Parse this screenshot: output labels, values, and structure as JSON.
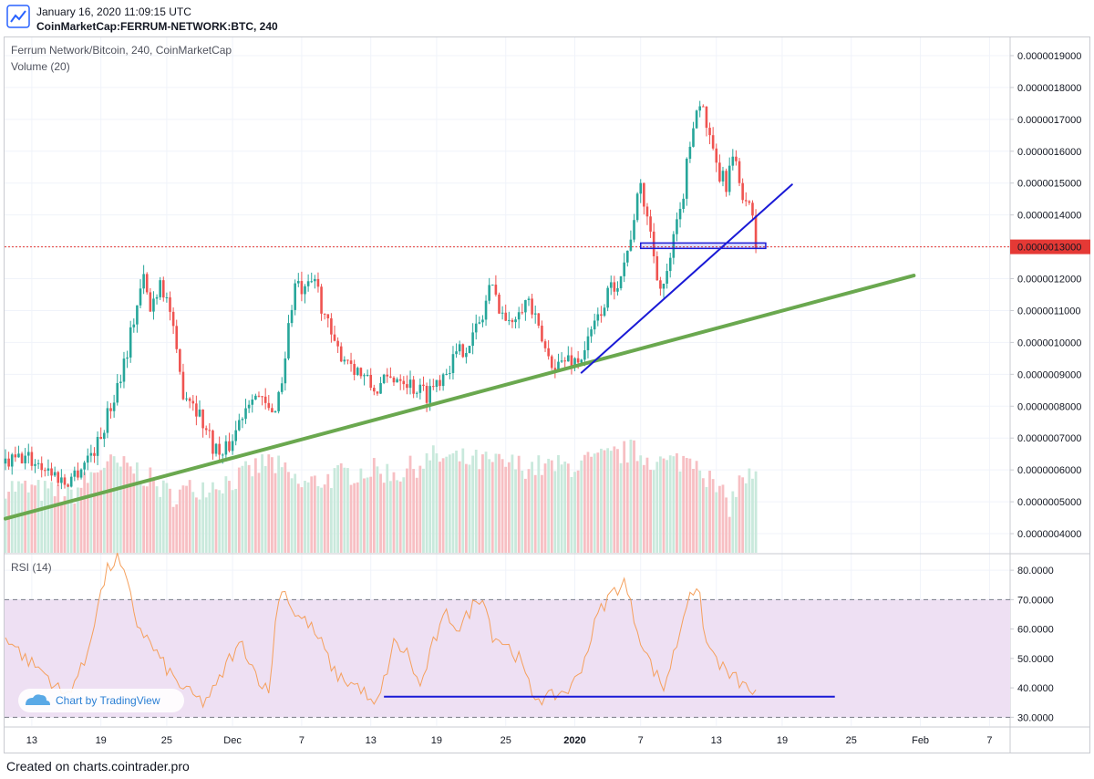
{
  "header": {
    "date": "January 16, 2020 11:09:15 UTC",
    "symbol": "CoinMarketCap:FERRUM-NETWORK:BTC, 240"
  },
  "footer": {
    "text": "Created on charts.cointrader.pro"
  },
  "watermark": {
    "text": "Chart by TradingView",
    "icon": "tradingview-cloud-icon"
  },
  "colors": {
    "up": "#26a69a",
    "down": "#ef5350",
    "volume_up": "#c9e9dc",
    "volume_down": "#f7bfc3",
    "rsi_line": "#f5a05d",
    "rsi_band": "#eee0f3",
    "price_line": "#e53935",
    "trendline_green": "#6aa84f",
    "trendline_blue": "#1a1ad6"
  },
  "chart_data": [
    {
      "type": "candlestick",
      "title": "Ferrum Network/Bitcoin, 240, CoinMarketCap",
      "overlay_label": "Volume (20)",
      "y_ticks": [
        "0.0000004000",
        "0.0000005000",
        "0.0000006000",
        "0.0000007000",
        "0.0000008000",
        "0.0000009000",
        "0.0000010000",
        "0.0000011000",
        "0.0000012000",
        "0.0000013000",
        "0.0000014000",
        "0.0000015000",
        "0.0000016000",
        "0.0000017000",
        "0.0000018000",
        "0.0000019000"
      ],
      "ylim": [
        3.4e-07,
        1.96e-06
      ],
      "x_ticks": [
        "13",
        "19",
        "25",
        "Dec",
        "7",
        "13",
        "19",
        "25",
        "2020",
        "7",
        "13",
        "19",
        "25",
        "Feb",
        "7"
      ],
      "last_price": "0.0000013000",
      "last_price_value": 1.3e-06,
      "price_path": [
        [
          0,
          6.2e-07
        ],
        [
          6,
          6.4e-07
        ],
        [
          12,
          6.1e-07
        ],
        [
          18,
          5.6e-07
        ],
        [
          22,
          6e-07
        ],
        [
          28,
          6.8e-07
        ],
        [
          33,
          8.3e-07
        ],
        [
          37,
          9.8e-07
        ],
        [
          40,
          1.12e-06
        ],
        [
          42,
          1.2e-06
        ],
        [
          44,
          1.1e-06
        ],
        [
          47,
          1.2e-06
        ],
        [
          50,
          1.1e-06
        ],
        [
          52,
          9.5e-07
        ],
        [
          54,
          8.5e-07
        ],
        [
          57,
          8.2e-07
        ],
        [
          60,
          7.5e-07
        ],
        [
          63,
          6.8e-07
        ],
        [
          66,
          6.4e-07
        ],
        [
          69,
          7e-07
        ],
        [
          72,
          7.8e-07
        ],
        [
          75,
          8.5e-07
        ],
        [
          78,
          8.1e-07
        ],
        [
          81,
          7.7e-07
        ],
        [
          84,
          8.8e-07
        ],
        [
          86,
          1.05e-06
        ],
        [
          88,
          1.18e-06
        ],
        [
          91,
          1.15e-06
        ],
        [
          94,
          1.2e-06
        ],
        [
          96,
          1.12e-06
        ],
        [
          98,
          1.05e-06
        ],
        [
          100,
          9.8e-07
        ],
        [
          104,
          9.5e-07
        ],
        [
          108,
          9e-07
        ],
        [
          112,
          8.5e-07
        ],
        [
          116,
          8.8e-07
        ],
        [
          120,
          9e-07
        ],
        [
          124,
          8.6e-07
        ],
        [
          128,
          8.4e-07
        ],
        [
          131,
          8.8e-07
        ],
        [
          134,
          9.2e-07
        ],
        [
          138,
          9.7e-07
        ],
        [
          142,
          1.02e-06
        ],
        [
          145,
          1.08e-06
        ],
        [
          147,
          1.18e-06
        ],
        [
          150,
          1.12e-06
        ],
        [
          153,
          1.05e-06
        ],
        [
          156,
          1.12e-06
        ],
        [
          159,
          1.13e-06
        ],
        [
          162,
          1.03e-06
        ],
        [
          165,
          9.5e-07
        ],
        [
          168,
          9.3e-07
        ],
        [
          171,
          9.5e-07
        ],
        [
          174,
          9.4e-07
        ],
        [
          177,
          1e-06
        ],
        [
          180,
          1.08e-06
        ],
        [
          183,
          1.15e-06
        ],
        [
          186,
          1.2e-06
        ],
        [
          189,
          1.28e-06
        ],
        [
          191,
          1.4e-06
        ],
        [
          193,
          1.48e-06
        ],
        [
          195,
          1.4e-06
        ],
        [
          197,
          1.28e-06
        ],
        [
          199,
          1.17e-06
        ],
        [
          201,
          1.2e-06
        ],
        [
          203,
          1.32e-06
        ],
        [
          205,
          1.4e-06
        ],
        [
          207,
          1.55e-06
        ],
        [
          209,
          1.7e-06
        ],
        [
          211,
          1.76e-06
        ],
        [
          213,
          1.68e-06
        ],
        [
          215,
          1.58e-06
        ],
        [
          217,
          1.52e-06
        ],
        [
          219,
          1.5e-06
        ],
        [
          221,
          1.58e-06
        ],
        [
          223,
          1.5e-06
        ],
        [
          225,
          1.45e-06
        ],
        [
          227,
          1.38e-06
        ],
        [
          228,
          1.3e-06
        ]
      ],
      "volume_path": [
        [
          0,
          5.5e-07
        ],
        [
          20,
          5.2e-07
        ],
        [
          30,
          6.2e-07
        ],
        [
          40,
          6e-07
        ],
        [
          50,
          5.2e-07
        ],
        [
          60,
          5.5e-07
        ],
        [
          70,
          5.7e-07
        ],
        [
          80,
          6.3e-07
        ],
        [
          90,
          5.5e-07
        ],
        [
          100,
          5.8e-07
        ],
        [
          110,
          6e-07
        ],
        [
          120,
          5.9e-07
        ],
        [
          130,
          6.4e-07
        ],
        [
          140,
          6.3e-07
        ],
        [
          150,
          6.2e-07
        ],
        [
          160,
          6.1e-07
        ],
        [
          170,
          6.1e-07
        ],
        [
          180,
          6.3e-07
        ],
        [
          190,
          6.6e-07
        ],
        [
          200,
          6.2e-07
        ],
        [
          210,
          6.4e-07
        ],
        [
          215,
          5.5e-07
        ],
        [
          220,
          4.9e-07
        ],
        [
          224,
          5.8e-07
        ],
        [
          228,
          5.7e-07
        ]
      ]
    },
    {
      "type": "line",
      "title": "RSI (14)",
      "y_ticks": [
        "30.0000",
        "40.0000",
        "50.0000",
        "60.0000",
        "70.0000",
        "80.0000"
      ],
      "ylim": [
        27,
        85
      ],
      "bands": [
        30,
        70
      ],
      "rsi_path": [
        [
          0,
          58
        ],
        [
          6,
          50
        ],
        [
          12,
          45
        ],
        [
          18,
          37
        ],
        [
          24,
          48
        ],
        [
          28,
          68
        ],
        [
          31,
          80
        ],
        [
          34,
          84
        ],
        [
          37,
          75
        ],
        [
          40,
          62
        ],
        [
          44,
          55
        ],
        [
          48,
          48
        ],
        [
          52,
          42
        ],
        [
          56,
          38
        ],
        [
          60,
          35
        ],
        [
          64,
          40
        ],
        [
          68,
          50
        ],
        [
          72,
          55
        ],
        [
          76,
          45
        ],
        [
          80,
          38
        ],
        [
          82,
          62
        ],
        [
          84,
          75
        ],
        [
          88,
          65
        ],
        [
          92,
          62
        ],
        [
          96,
          55
        ],
        [
          100,
          45
        ],
        [
          104,
          42
        ],
        [
          108,
          40
        ],
        [
          112,
          33
        ],
        [
          114,
          38
        ],
        [
          118,
          55
        ],
        [
          122,
          52
        ],
        [
          126,
          40
        ],
        [
          130,
          55
        ],
        [
          134,
          65
        ],
        [
          138,
          60
        ],
        [
          142,
          68
        ],
        [
          145,
          72
        ],
        [
          148,
          58
        ],
        [
          152,
          55
        ],
        [
          156,
          50
        ],
        [
          160,
          38
        ],
        [
          164,
          36
        ],
        [
          168,
          38
        ],
        [
          172,
          40
        ],
        [
          176,
          50
        ],
        [
          180,
          65
        ],
        [
          184,
          72
        ],
        [
          188,
          76
        ],
        [
          192,
          60
        ],
        [
          196,
          48
        ],
        [
          200,
          40
        ],
        [
          204,
          55
        ],
        [
          208,
          74
        ],
        [
          211,
          70
        ],
        [
          213,
          55
        ],
        [
          216,
          50
        ],
        [
          219,
          45
        ],
        [
          222,
          43
        ],
        [
          225,
          40
        ],
        [
          228,
          38
        ]
      ]
    }
  ],
  "drawings": [
    {
      "name": "green-uptrend-line",
      "color": "#6aa84f",
      "from": [
        0,
        4.47e-07
      ],
      "to": [
        276,
        1.21e-06
      ]
    },
    {
      "name": "blue-uptrend-line",
      "color": "#1a1ad6",
      "from": [
        175,
        9.05e-07
      ],
      "to": [
        239,
        1.4955e-06
      ]
    },
    {
      "name": "support-rectangle",
      "color": "#1a1ad6",
      "from": [
        193,
        1.312e-06
      ],
      "to": [
        231,
        1.295e-06
      ]
    },
    {
      "name": "rsi-support-line",
      "color": "#1a1ad6",
      "from": [
        115,
        37
      ],
      "to": [
        252,
        37
      ]
    }
  ]
}
